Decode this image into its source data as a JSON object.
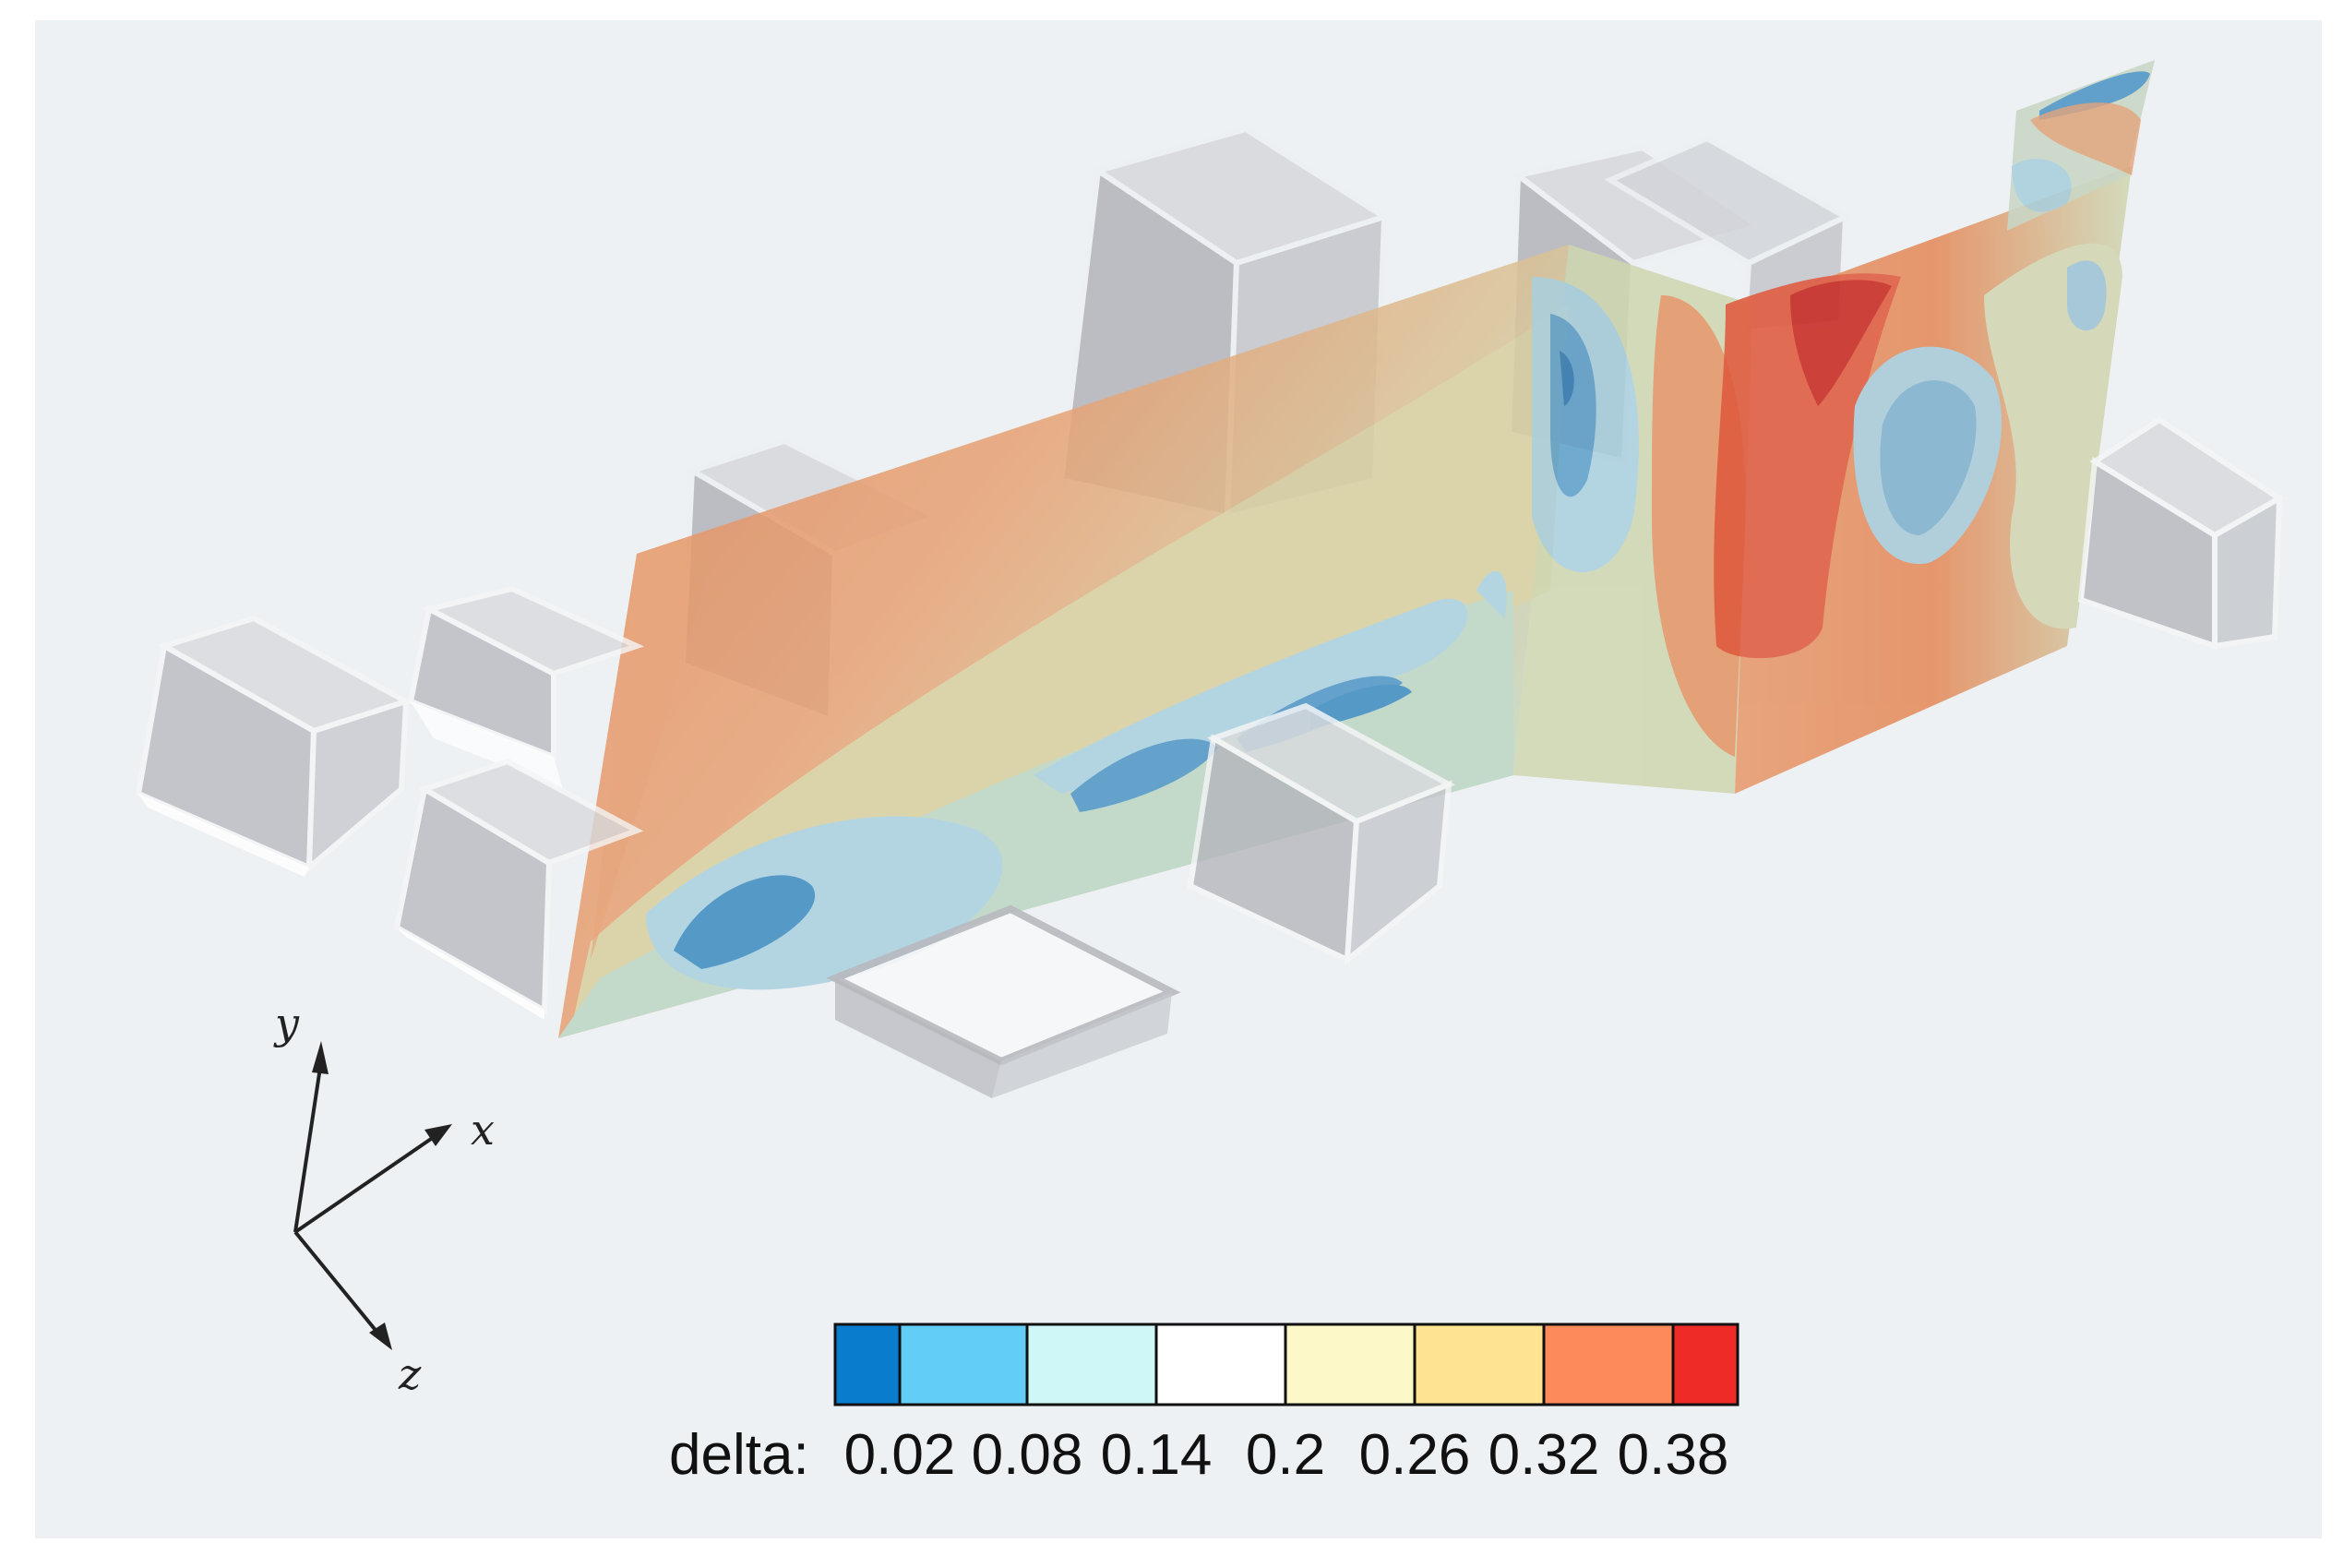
{
  "axes": {
    "x": "x",
    "y": "y",
    "z": "z"
  },
  "colorbar": {
    "title": "delta:",
    "tick_labels": [
      "0.02",
      "0.08",
      "0.14",
      "0.2",
      "0.26",
      "0.32",
      "0.38"
    ],
    "colors": [
      "#0a7ccd",
      "#62cdf7",
      "#cff7f8",
      "#ffffff",
      "#fdf8c8",
      "#fde392",
      "#fc8a5a",
      "#ee2b26"
    ]
  },
  "palette": {
    "background": "#edf1f4",
    "building_face": "#b7b9bf",
    "low": "#3b86b8",
    "mid": "#cfe0c8",
    "high": "#e8895c",
    "peak": "#cc2a22"
  }
}
